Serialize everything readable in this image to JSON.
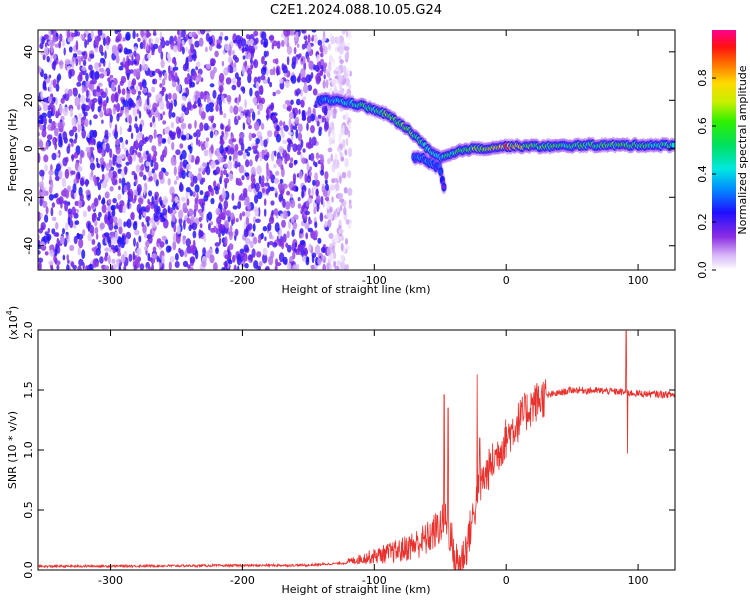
{
  "figure": {
    "title": "C2E1.2024.088.10.05.G24"
  },
  "chart_data": [
    {
      "type": "heatmap",
      "xlabel": "Height of straight line (km)",
      "ylabel": "Frequency (Hz)",
      "xlim": [
        -355,
        128
      ],
      "ylim": [
        -50,
        49
      ],
      "x_ticks": [
        -300,
        -200,
        -100,
        0,
        100
      ],
      "y_ticks": [
        -40,
        -20,
        0,
        20,
        40
      ],
      "x_tick_labels": [
        "-300",
        "-200",
        "-100",
        "0",
        "100"
      ],
      "y_tick_labels": [
        "-40",
        "-20",
        "0",
        "20",
        "40"
      ],
      "colorbar": {
        "label": "Normalized spectral amplitude",
        "range": [
          0,
          1
        ],
        "ticks": [
          0.0,
          0.2,
          0.4,
          0.6,
          0.8
        ],
        "tick_labels": [
          "0.0",
          "0.2",
          "0.4",
          "0.6",
          "0.8"
        ]
      },
      "noise_region": {
        "x_range": [
          -355,
          -118
        ],
        "y_range": [
          -50,
          49
        ],
        "amplitude": 0.15
      },
      "signal_track": [
        {
          "x": -142,
          "y": 20,
          "amp": 0.35
        },
        {
          "x": -130,
          "y": 20,
          "amp": 0.38
        },
        {
          "x": -120,
          "y": 19,
          "amp": 0.4
        },
        {
          "x": -110,
          "y": 18,
          "amp": 0.5
        },
        {
          "x": -100,
          "y": 16,
          "amp": 0.55
        },
        {
          "x": -90,
          "y": 14,
          "amp": 0.6
        },
        {
          "x": -80,
          "y": 10,
          "amp": 0.62
        },
        {
          "x": -72,
          "y": 7,
          "amp": 0.6
        },
        {
          "x": -65,
          "y": 3,
          "amp": 0.55
        },
        {
          "x": -58,
          "y": -1,
          "amp": 0.5
        },
        {
          "x": -50,
          "y": -4,
          "amp": 0.45
        },
        {
          "x": -40,
          "y": -2,
          "amp": 0.55
        },
        {
          "x": -30,
          "y": 0,
          "amp": 0.6
        },
        {
          "x": -20,
          "y": 0,
          "amp": 0.7
        },
        {
          "x": -10,
          "y": 0.5,
          "amp": 0.75
        },
        {
          "x": 0,
          "y": 1,
          "amp": 0.8
        },
        {
          "x": 20,
          "y": 1,
          "amp": 0.6
        },
        {
          "x": 40,
          "y": 1,
          "amp": 0.55
        },
        {
          "x": 60,
          "y": 1.5,
          "amp": 0.55
        },
        {
          "x": 80,
          "y": 1.5,
          "amp": 0.58
        },
        {
          "x": 100,
          "y": 1.5,
          "amp": 0.55
        },
        {
          "x": 128,
          "y": 1.5,
          "amp": 0.5
        }
      ],
      "side_branch": [
        {
          "x": -70,
          "y": -3,
          "amp": 0.3
        },
        {
          "x": -60,
          "y": -5,
          "amp": 0.35
        },
        {
          "x": -50,
          "y": -8,
          "amp": 0.3
        },
        {
          "x": -47,
          "y": -16,
          "amp": 0.2
        }
      ]
    },
    {
      "type": "line",
      "xlabel": "Height of straight line (km)",
      "ylabel": "SNR (10 * v/v)",
      "yscale_label": "(x10",
      "yscale_exponent": "4",
      "yscale_close": ")",
      "xlim": [
        -355,
        128
      ],
      "ylim": [
        0,
        2.0
      ],
      "x_ticks": [
        -300,
        -200,
        -100,
        0,
        100
      ],
      "y_ticks": [
        0.0,
        0.5,
        1.0,
        1.5,
        2.0
      ],
      "x_tick_labels": [
        "-300",
        "-200",
        "-100",
        "0",
        "100"
      ],
      "y_tick_labels": [
        "0.0",
        "0.5",
        "1.0",
        "1.5",
        "2.0"
      ],
      "color": "#e8302c",
      "series_profile": [
        {
          "x": -355,
          "y": 0.03
        },
        {
          "x": -250,
          "y": 0.035
        },
        {
          "x": -150,
          "y": 0.04
        },
        {
          "x": -120,
          "y": 0.06
        },
        {
          "x": -100,
          "y": 0.09
        },
        {
          "x": -80,
          "y": 0.12
        },
        {
          "x": -60,
          "y": 0.2
        },
        {
          "x": -50,
          "y": 0.3
        },
        {
          "x": -45,
          "y": 0.35
        },
        {
          "x": -40,
          "y": 0.1
        },
        {
          "x": -35,
          "y": 0.05
        },
        {
          "x": -30,
          "y": 0.2
        },
        {
          "x": -25,
          "y": 0.45
        },
        {
          "x": -20,
          "y": 0.7
        },
        {
          "x": -15,
          "y": 0.8
        },
        {
          "x": -10,
          "y": 0.9
        },
        {
          "x": -5,
          "y": 1.0
        },
        {
          "x": 0,
          "y": 1.1
        },
        {
          "x": 10,
          "y": 1.25
        },
        {
          "x": 20,
          "y": 1.38
        },
        {
          "x": 30,
          "y": 1.45
        },
        {
          "x": 50,
          "y": 1.5
        },
        {
          "x": 80,
          "y": 1.49
        },
        {
          "x": 100,
          "y": 1.47
        },
        {
          "x": 128,
          "y": 1.46
        }
      ],
      "spikes": [
        {
          "x": -47,
          "y": 1.46
        },
        {
          "x": -44,
          "y": 1.35
        },
        {
          "x": -22,
          "y": 1.63
        },
        {
          "x": -20,
          "y": 1.1
        },
        {
          "x": 91,
          "y": 1.99
        },
        {
          "x": 92,
          "y": 0.97
        }
      ]
    }
  ]
}
